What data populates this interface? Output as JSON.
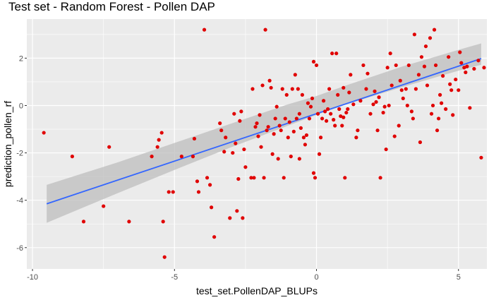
{
  "chart_data": {
    "type": "scatter",
    "title": "Test set - Random Forest - Pollen DAP",
    "xlabel": "test_set.PollenDAP_BLUPs",
    "ylabel": "prediction_pollen_rf",
    "xlim": [
      -10.2,
      6.0
    ],
    "ylim": [
      -6.9,
      3.65
    ],
    "x_ticks": [
      -10,
      -5,
      0,
      5
    ],
    "x_tick_labels": [
      "-10",
      "-5",
      "0",
      "5"
    ],
    "y_ticks": [
      -6,
      -4,
      -2,
      0,
      2
    ],
    "y_tick_labels": [
      "-6",
      "-4",
      "-2",
      "0",
      "2"
    ],
    "grid": true,
    "legend": "none",
    "colors": {
      "points": "#e00000",
      "fit": "#3366ff",
      "band": "#bebebe",
      "panel": "#ebebeb",
      "grid": "#ffffff"
    },
    "fit_line": {
      "x": [
        -9.5,
        5.8
      ],
      "y": [
        -4.15,
        1.98
      ]
    },
    "confidence_band": {
      "x": [
        -9.5,
        -7,
        -5,
        -3,
        -1,
        0,
        1,
        3,
        5,
        5.8
      ],
      "lower": [
        -4.95,
        -3.7,
        -2.72,
        -1.76,
        -0.85,
        -0.4,
        0.03,
        0.77,
        1.47,
        1.72
      ],
      "upper": [
        -3.35,
        -2.4,
        -1.58,
        -0.76,
        0.05,
        0.4,
        0.83,
        1.64,
        2.35,
        2.62
      ]
    },
    "series": [
      {
        "points": [
          [
            -9.6,
            -1.15
          ],
          [
            -8.6,
            -2.15
          ],
          [
            -8.2,
            -4.9
          ],
          [
            -7.5,
            -4.25
          ],
          [
            -7.3,
            -1.75
          ],
          [
            -6.6,
            -4.9
          ],
          [
            -5.8,
            -2.15
          ],
          [
            -5.6,
            -1.75
          ],
          [
            -5.55,
            -1.45
          ],
          [
            -5.45,
            -1.15
          ],
          [
            -5.4,
            -4.9
          ],
          [
            -5.35,
            -6.4
          ],
          [
            -5.2,
            -3.65
          ],
          [
            -5.05,
            -3.65
          ],
          [
            -4.75,
            -2.15
          ],
          [
            -4.35,
            -2.15
          ],
          [
            -4.3,
            -1.4
          ],
          [
            -4.2,
            -3.2
          ],
          [
            -4.15,
            -3.65
          ],
          [
            -3.95,
            3.2
          ],
          [
            -3.85,
            -3.05
          ],
          [
            -3.75,
            -3.35
          ],
          [
            -3.7,
            -4.3
          ],
          [
            -3.6,
            -5.55
          ],
          [
            -3.4,
            -0.75
          ],
          [
            -3.35,
            -1.05
          ],
          [
            -3.25,
            -1.95
          ],
          [
            -3.2,
            -1.35
          ],
          [
            -3.05,
            -4.75
          ],
          [
            -2.95,
            -2.0
          ],
          [
            -2.9,
            -0.35
          ],
          [
            -2.85,
            -1.6
          ],
          [
            -2.8,
            -4.45
          ],
          [
            -2.75,
            -3.1
          ],
          [
            -2.7,
            -0.65
          ],
          [
            -2.65,
            -0.25
          ],
          [
            -2.6,
            -4.75
          ],
          [
            -2.55,
            -1.85
          ],
          [
            -2.5,
            -2.6
          ],
          [
            -2.3,
            -3.05
          ],
          [
            -2.25,
            0.7
          ],
          [
            -2.2,
            -3.05
          ],
          [
            -2.15,
            -0.9
          ],
          [
            -2.1,
            -0.75
          ],
          [
            -2.05,
            -1.3
          ],
          [
            -2.0,
            -0.4
          ],
          [
            -1.95,
            -1.75
          ],
          [
            -1.9,
            0.85
          ],
          [
            -1.85,
            -3.05
          ],
          [
            -1.8,
            3.2
          ],
          [
            -1.75,
            -1.05
          ],
          [
            -1.7,
            -0.9
          ],
          [
            -1.65,
            1.05
          ],
          [
            -1.6,
            0.75
          ],
          [
            -1.55,
            -2.05
          ],
          [
            -1.5,
            -1.2
          ],
          [
            -1.45,
            -0.55
          ],
          [
            -1.4,
            -0.05
          ],
          [
            -1.35,
            -2.25
          ],
          [
            -1.3,
            -0.85
          ],
          [
            -1.25,
            -1.05
          ],
          [
            -1.2,
            0.7
          ],
          [
            -1.15,
            -3.05
          ],
          [
            -1.1,
            -0.55
          ],
          [
            -1.05,
            0.45
          ],
          [
            -1.0,
            -1.35
          ],
          [
            -0.95,
            -0.7
          ],
          [
            -0.9,
            -2.15
          ],
          [
            -0.85,
            0.7
          ],
          [
            -0.8,
            -1.1
          ],
          [
            -0.75,
            1.3
          ],
          [
            -0.7,
            -0.55
          ],
          [
            -0.65,
            0.7
          ],
          [
            -0.6,
            -0.35
          ],
          [
            -0.55,
            -0.95
          ],
          [
            -0.5,
            0.45
          ],
          [
            -0.45,
            -1.35
          ],
          [
            -0.4,
            -1.65
          ],
          [
            -0.35,
            -1.25
          ],
          [
            -0.3,
            0.1
          ],
          [
            -0.25,
            -0.55
          ],
          [
            -0.2,
            -0.05
          ],
          [
            -0.15,
            0.3
          ],
          [
            -0.1,
            -2.85
          ],
          [
            -0.05,
            -3.05
          ],
          [
            0.0,
            1.7
          ],
          [
            0.05,
            -0.35
          ],
          [
            0.1,
            -2.05
          ],
          [
            0.15,
            -1.35
          ],
          [
            0.2,
            -0.55
          ],
          [
            0.25,
            0.2
          ],
          [
            0.3,
            -0.25
          ],
          [
            0.35,
            -0.65
          ],
          [
            0.4,
            -0.15
          ],
          [
            0.45,
            0.7
          ],
          [
            0.5,
            -0.35
          ],
          [
            0.55,
            2.2
          ],
          [
            0.6,
            -0.6
          ],
          [
            0.65,
            -0.85
          ],
          [
            0.7,
            2.2
          ],
          [
            0.75,
            0.45
          ],
          [
            0.8,
            -0.15
          ],
          [
            0.85,
            -0.45
          ],
          [
            0.9,
            -0.85
          ],
          [
            0.95,
            -0.5
          ],
          [
            1.0,
            -3.05
          ],
          [
            1.05,
            -0.3
          ],
          [
            1.1,
            -0.15
          ],
          [
            1.2,
            1.3
          ],
          [
            1.3,
            0.05
          ],
          [
            1.4,
            -1.35
          ],
          [
            1.55,
            0.2
          ],
          [
            1.65,
            1.7
          ],
          [
            1.8,
            1.35
          ],
          [
            1.9,
            -0.35
          ],
          [
            2.0,
            0.05
          ],
          [
            2.05,
            0.6
          ],
          [
            2.1,
            0.15
          ],
          [
            2.15,
            -1.05
          ],
          [
            2.2,
            0.35
          ],
          [
            2.25,
            -3.05
          ],
          [
            2.35,
            -0.3
          ],
          [
            2.45,
            -1.85
          ],
          [
            2.55,
            0.0
          ],
          [
            2.65,
            0.85
          ],
          [
            2.75,
            -1.3
          ],
          [
            2.8,
            1.7
          ],
          [
            2.9,
            -0.85
          ],
          [
            3.0,
            0.65
          ],
          [
            3.05,
            0.3
          ],
          [
            3.15,
            0.7
          ],
          [
            3.2,
            0.0
          ],
          [
            3.25,
            1.7
          ],
          [
            3.35,
            -0.25
          ],
          [
            3.4,
            -0.55
          ],
          [
            3.5,
            0.7
          ],
          [
            3.6,
            1.3
          ],
          [
            3.7,
            2.05
          ],
          [
            3.8,
            1.65
          ],
          [
            3.9,
            0.85
          ],
          [
            4.0,
            2.85
          ],
          [
            4.1,
            0.0
          ],
          [
            4.2,
            1.7
          ],
          [
            4.3,
            -0.55
          ],
          [
            4.35,
            0.45
          ],
          [
            4.45,
            1.25
          ],
          [
            4.55,
            -0.15
          ],
          [
            4.65,
            2.05
          ],
          [
            4.75,
            0.65
          ],
          [
            4.8,
            -0.4
          ],
          [
            4.9,
            1.1
          ],
          [
            5.0,
            0.65
          ],
          [
            5.05,
            2.25
          ],
          [
            5.1,
            1.8
          ],
          [
            5.2,
            1.6
          ],
          [
            5.3,
            1.65
          ],
          [
            5.4,
            -0.1
          ],
          [
            5.55,
            1.55
          ],
          [
            5.7,
            1.9
          ],
          [
            5.8,
            -2.2
          ],
          [
            5.9,
            1.6
          ],
          [
            3.65,
            -1.55
          ],
          [
            4.05,
            -0.35
          ],
          [
            1.45,
            -1.05
          ],
          [
            0.95,
            0.75
          ],
          [
            -0.1,
            1.85
          ],
          [
            2.95,
            1.05
          ],
          [
            4.25,
            -1.05
          ],
          [
            2.6,
            2.2
          ],
          [
            1.75,
            0.7
          ],
          [
            -0.6,
            -2.25
          ],
          [
            3.85,
            2.5
          ],
          [
            5.25,
            1.4
          ],
          [
            4.7,
            0.9
          ],
          [
            2.4,
            -0.05
          ],
          [
            3.45,
            3.0
          ],
          [
            4.15,
            3.2
          ],
          [
            4.4,
            0.1
          ],
          [
            2.5,
            1.6
          ],
          [
            1.15,
            0.55
          ]
        ]
      }
    ]
  }
}
